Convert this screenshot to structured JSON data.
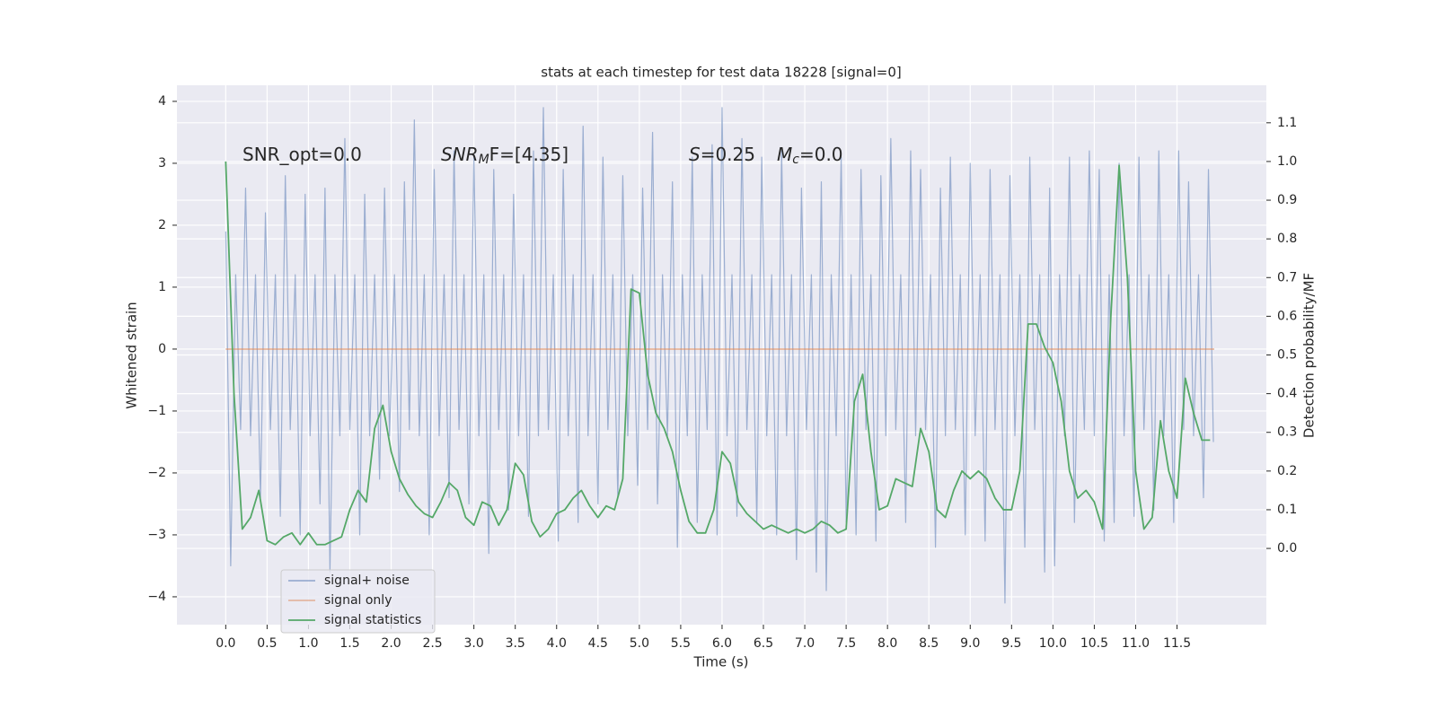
{
  "chart_data": {
    "type": "line",
    "title": "stats at each timestep for test data 18228 [signal=0]",
    "xlabel": "Time (s)",
    "ylabel": "Whitened strain",
    "y2label": "Detection probability/MF",
    "annotations": [
      {
        "parts": [
          "SNR_opt=0.0"
        ]
      },
      {
        "parts": [
          "SNR",
          "M",
          "F=[4.35]"
        ]
      },
      {
        "parts": [
          "S",
          "=0.25",
          "M",
          "c",
          "=0.0"
        ]
      }
    ],
    "legend": "lower left",
    "grid": true,
    "xlim": [
      -0.59,
      12.58
    ],
    "ylim": [
      -4.45,
      4.26
    ],
    "y2lim": [
      -0.197,
      1.197
    ],
    "xticks": [
      {
        "value": 0,
        "label": "0.0"
      },
      0.5,
      {
        "value": 1,
        "label": "1.0"
      },
      1.5,
      {
        "value": 2,
        "label": "2.0"
      },
      2.5,
      {
        "value": 3,
        "label": "3.0"
      },
      3.5,
      {
        "value": 4,
        "label": "4.0"
      },
      4.5,
      {
        "value": 5,
        "label": "5.0"
      },
      5.5,
      {
        "value": 6,
        "label": "6.0"
      },
      6.5,
      {
        "value": 7,
        "label": "7.0"
      },
      7.5,
      {
        "value": 8,
        "label": "8.0"
      },
      8.5,
      {
        "value": 9,
        "label": "9.0"
      },
      9.5,
      {
        "value": 10,
        "label": "10.0"
      },
      10.5,
      {
        "value": 11,
        "label": "11.0"
      },
      11.5
    ],
    "yticks": [
      {
        "value": -4,
        "label": "−4"
      },
      {
        "value": -3,
        "label": "−3"
      },
      {
        "value": -2,
        "label": "−2"
      },
      {
        "value": -1,
        "label": "−1"
      },
      0,
      1,
      2,
      3,
      4
    ],
    "y2ticks": [
      {
        "value": 0,
        "label": "0.0"
      },
      0.1,
      0.2,
      0.3,
      0.4,
      0.5,
      0.6,
      0.7,
      0.8,
      0.9,
      {
        "value": 1,
        "label": "1.0"
      },
      1.1
    ],
    "series": [
      {
        "name": "signal+ noise",
        "color": "#4c72b0",
        "axis": "y",
        "x": [
          0,
          0.06,
          0.12,
          0.18,
          0.24,
          0.3,
          0.36,
          0.42,
          0.48,
          0.54,
          0.6,
          0.66,
          0.72,
          0.78,
          0.84,
          0.9,
          0.96,
          1.02,
          1.08,
          1.14,
          1.2,
          1.26,
          1.32,
          1.38,
          1.44,
          1.5,
          1.56,
          1.62,
          1.68,
          1.74,
          1.8,
          1.86,
          1.92,
          1.98,
          2.04,
          2.1,
          2.16,
          2.22,
          2.28,
          2.34,
          2.4,
          2.46,
          2.52,
          2.58,
          2.64,
          2.7,
          2.76,
          2.82,
          2.88,
          2.94,
          3,
          3.06,
          3.12,
          3.18,
          3.24,
          3.3,
          3.36,
          3.42,
          3.48,
          3.54,
          3.6,
          3.66,
          3.72,
          3.78,
          3.84,
          3.9,
          3.96,
          4.02,
          4.08,
          4.14,
          4.2,
          4.26,
          4.32,
          4.38,
          4.44,
          4.5,
          4.56,
          4.62,
          4.68,
          4.74,
          4.8,
          4.86,
          4.92,
          4.98,
          5.04,
          5.1,
          5.16,
          5.22,
          5.28,
          5.34,
          5.4,
          5.46,
          5.52,
          5.58,
          5.64,
          5.7,
          5.76,
          5.82,
          5.88,
          5.94,
          6,
          6.06,
          6.12,
          6.18,
          6.24,
          6.3,
          6.36,
          6.42,
          6.48,
          6.54,
          6.6,
          6.66,
          6.72,
          6.78,
          6.84,
          6.9,
          6.96,
          7.02,
          7.08,
          7.14,
          7.2,
          7.26,
          7.32,
          7.38,
          7.44,
          7.5,
          7.56,
          7.62,
          7.68,
          7.74,
          7.8,
          7.86,
          7.92,
          7.98,
          8.04,
          8.1,
          8.16,
          8.22,
          8.28,
          8.34,
          8.4,
          8.46,
          8.52,
          8.58,
          8.64,
          8.7,
          8.76,
          8.82,
          8.88,
          8.94,
          9,
          9.06,
          9.12,
          9.18,
          9.24,
          9.3,
          9.36,
          9.42,
          9.48,
          9.54,
          9.6,
          9.66,
          9.72,
          9.78,
          9.84,
          9.9,
          9.96,
          10.02,
          10.08,
          10.14,
          10.2,
          10.26,
          10.32,
          10.38,
          10.44,
          10.5,
          10.56,
          10.62,
          10.68,
          10.74,
          10.8,
          10.86,
          10.92,
          10.98,
          11.04,
          11.1,
          11.16,
          11.22,
          11.28,
          11.34,
          11.4,
          11.46,
          11.52,
          11.58,
          11.64,
          11.7,
          11.76,
          11.82,
          11.88,
          11.94
        ],
        "values": [
          1.9,
          -3.5,
          1.2,
          -1.3,
          2.6,
          -1.4,
          1.2,
          -2.4,
          2.2,
          -1.3,
          1.2,
          -2.7,
          2.8,
          -1.3,
          1.2,
          -3.0,
          2.5,
          -1.4,
          1.2,
          -2.5,
          2.6,
          -3.6,
          1.2,
          -1.4,
          3.4,
          -1.3,
          1.2,
          -3.0,
          2.5,
          -1.4,
          1.2,
          -2.1,
          2.6,
          -1.4,
          1.2,
          -2.3,
          2.7,
          -1.3,
          3.7,
          -1.4,
          1.2,
          -3.0,
          2.9,
          -1.4,
          1.2,
          -2.4,
          3.2,
          -1.3,
          1.2,
          -2.5,
          3.1,
          -1.4,
          1.2,
          -3.3,
          2.9,
          -1.3,
          1.2,
          -2.6,
          2.5,
          -1.4,
          1.2,
          -2.7,
          3.2,
          -1.4,
          3.9,
          -1.3,
          1.2,
          -3.1,
          2.9,
          -1.4,
          1.2,
          -2.8,
          3.6,
          -1.4,
          1.2,
          -2.5,
          3.1,
          -1.3,
          1.2,
          -2.4,
          2.8,
          -1.4,
          1.2,
          -2.2,
          2.6,
          -1.3,
          3.5,
          -2.5,
          1.2,
          -1.4,
          2.7,
          -3.2,
          1.2,
          -1.4,
          3.1,
          -2.8,
          1.2,
          -1.3,
          3.3,
          -3.0,
          3.9,
          -1.4,
          1.2,
          -2.7,
          3.4,
          -1.3,
          1.2,
          -2.8,
          3.1,
          -1.4,
          1.2,
          -3.0,
          3.2,
          -1.4,
          1.2,
          -3.4,
          2.6,
          -1.3,
          1.2,
          -3.6,
          2.7,
          -3.9,
          1.2,
          -1.4,
          3.1,
          -2.8,
          1.2,
          -3.0,
          2.9,
          -1.3,
          1.2,
          -3.1,
          2.8,
          -1.4,
          3.4,
          -1.3,
          1.2,
          -2.8,
          3.2,
          -1.4,
          2.9,
          -1.3,
          1.2,
          -3.2,
          2.6,
          -1.4,
          3.1,
          -1.3,
          1.2,
          -3.0,
          3.0,
          -1.4,
          1.2,
          -3.1,
          2.9,
          -1.3,
          1.2,
          -4.1,
          2.8,
          -1.4,
          1.2,
          -3.2,
          3.1,
          -1.3,
          1.2,
          -3.6,
          2.6,
          -3.5,
          1.2,
          -1.4,
          3.1,
          -2.8,
          1.2,
          -1.3,
          3.2,
          -1.4,
          2.9,
          -3.1,
          1.2,
          -2.8,
          3.0,
          -1.4,
          1.2,
          -2.7,
          3.1,
          -1.3,
          1.2,
          -2.6,
          3.2,
          -1.4,
          1.2,
          -2.8,
          3.2,
          -1.3,
          2.7,
          -1.4,
          1.2,
          -2.4,
          2.9,
          -1.5
        ]
      },
      {
        "name": "signal only",
        "color": "#dd8452",
        "axis": "y",
        "x": [
          0,
          11.95
        ],
        "values": [
          0,
          0
        ]
      },
      {
        "name": "signal statistics",
        "color": "#55a868",
        "axis": "y2",
        "x": [
          0,
          0.1,
          0.2,
          0.3,
          0.4,
          0.5,
          0.6,
          0.7,
          0.8,
          0.9,
          1,
          1.1,
          1.2,
          1.3,
          1.4,
          1.5,
          1.6,
          1.7,
          1.8,
          1.9,
          2,
          2.1,
          2.2,
          2.3,
          2.4,
          2.5,
          2.6,
          2.7,
          2.8,
          2.9,
          3,
          3.1,
          3.2,
          3.3,
          3.4,
          3.5,
          3.6,
          3.7,
          3.8,
          3.9,
          4,
          4.1,
          4.2,
          4.3,
          4.4,
          4.5,
          4.6,
          4.7,
          4.8,
          4.9,
          5,
          5.1,
          5.2,
          5.3,
          5.4,
          5.5,
          5.6,
          5.7,
          5.8,
          5.9,
          6,
          6.1,
          6.2,
          6.3,
          6.4,
          6.5,
          6.6,
          6.7,
          6.8,
          6.9,
          7,
          7.1,
          7.2,
          7.3,
          7.4,
          7.5,
          7.6,
          7.7,
          7.8,
          7.9,
          8,
          8.1,
          8.2,
          8.3,
          8.4,
          8.5,
          8.6,
          8.7,
          8.8,
          8.9,
          9,
          9.1,
          9.2,
          9.3,
          9.4,
          9.5,
          9.6,
          9.7,
          9.8,
          9.9,
          10,
          10.1,
          10.2,
          10.3,
          10.4,
          10.5,
          10.6,
          10.7,
          10.8,
          10.9,
          11,
          11.1,
          11.2,
          11.3,
          11.4,
          11.5,
          11.6,
          11.7,
          11.8,
          11.9
        ],
        "values": [
          1.0,
          0.4,
          0.05,
          0.08,
          0.15,
          0.02,
          0.01,
          0.03,
          0.04,
          0.01,
          0.04,
          0.01,
          0.01,
          0.02,
          0.03,
          0.1,
          0.15,
          0.12,
          0.31,
          0.37,
          0.25,
          0.18,
          0.14,
          0.11,
          0.09,
          0.08,
          0.12,
          0.17,
          0.15,
          0.08,
          0.06,
          0.12,
          0.11,
          0.06,
          0.1,
          0.22,
          0.19,
          0.07,
          0.03,
          0.05,
          0.09,
          0.1,
          0.13,
          0.15,
          0.11,
          0.08,
          0.11,
          0.1,
          0.18,
          0.67,
          0.66,
          0.45,
          0.35,
          0.31,
          0.25,
          0.15,
          0.07,
          0.04,
          0.04,
          0.1,
          0.25,
          0.22,
          0.12,
          0.09,
          0.07,
          0.05,
          0.06,
          0.05,
          0.04,
          0.05,
          0.04,
          0.05,
          0.07,
          0.06,
          0.04,
          0.05,
          0.38,
          0.45,
          0.25,
          0.1,
          0.11,
          0.18,
          0.17,
          0.16,
          0.31,
          0.25,
          0.1,
          0.08,
          0.15,
          0.2,
          0.18,
          0.2,
          0.18,
          0.13,
          0.1,
          0.1,
          0.2,
          0.58,
          0.58,
          0.52,
          0.48,
          0.38,
          0.2,
          0.13,
          0.15,
          0.12,
          0.05,
          0.6,
          0.99,
          0.7,
          0.2,
          0.05,
          0.08,
          0.33,
          0.2,
          0.13,
          0.44,
          0.35,
          0.28,
          0.28
        ]
      }
    ]
  }
}
